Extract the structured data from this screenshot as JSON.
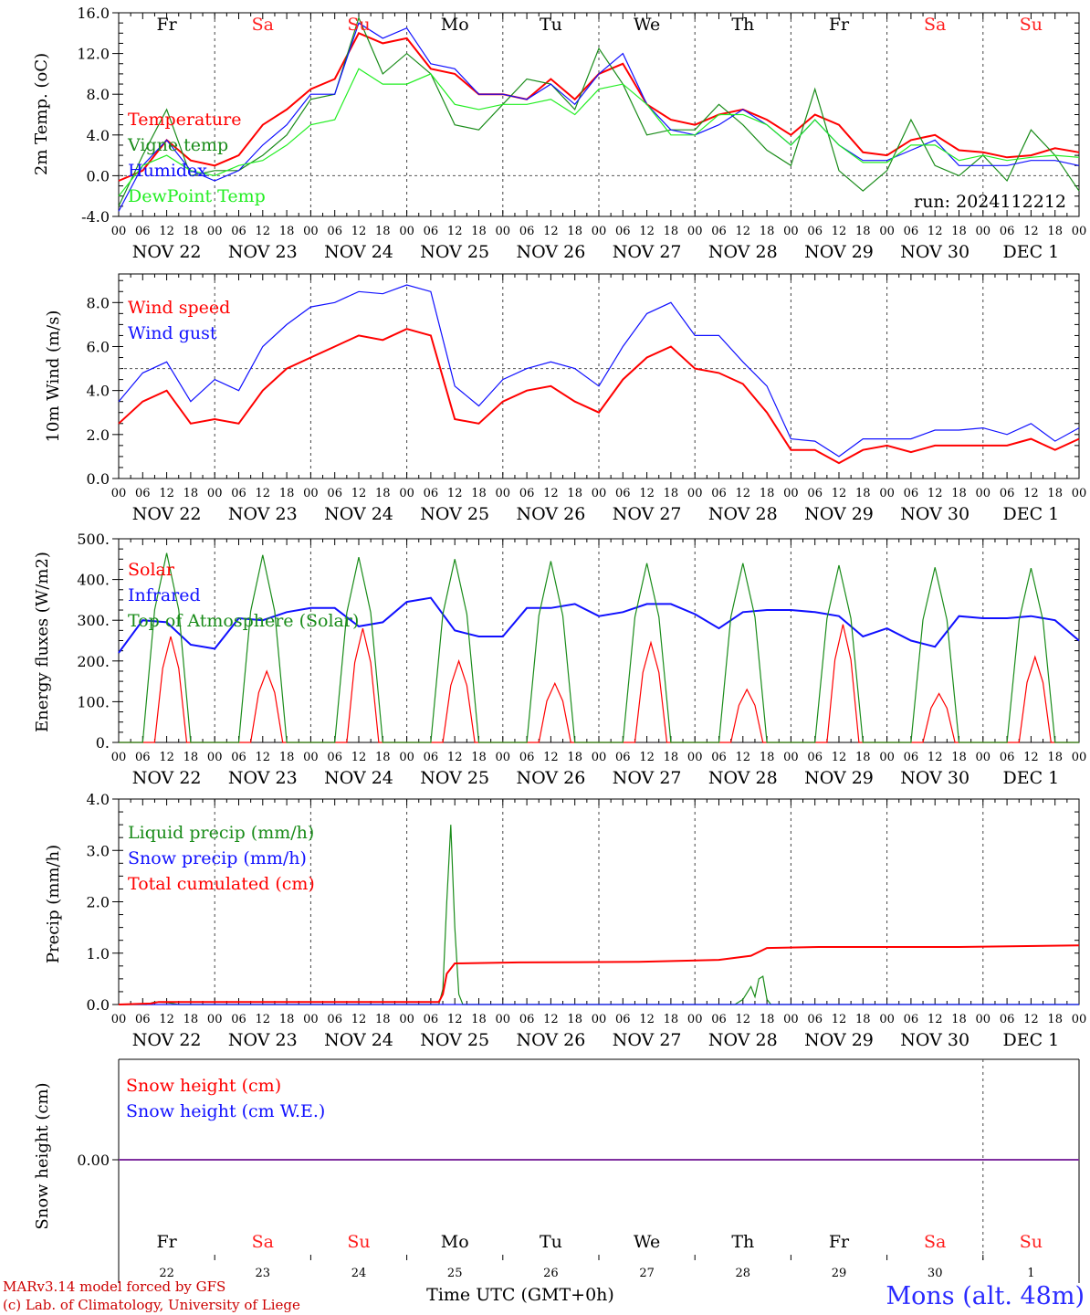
{
  "days": {
    "names": [
      "Fr",
      "Sa",
      "Su",
      "Mo",
      "Tu",
      "We",
      "Th",
      "Fr",
      "Sa",
      "Su"
    ],
    "weekend_color": "#ff2020",
    "weekday_color": "#000000",
    "dates": [
      "NOV 22",
      "NOV 23",
      "NOV 24",
      "NOV 25",
      "NOV 26",
      "NOV 27",
      "NOV 28",
      "NOV 29",
      "NOV 30",
      "DEC  1"
    ],
    "day_numbers": [
      "22",
      "23",
      "24",
      "25",
      "26",
      "27",
      "28",
      "29",
      "30",
      "1"
    ],
    "hour_labels": [
      "00",
      "06",
      "12",
      "18"
    ],
    "end_hour_label": "00"
  },
  "run_label": "run: 2024112212",
  "footer": {
    "credit1": "MARv3.14 model forced by GFS",
    "credit2": "(c) Lab. of Climatology, University of Liege",
    "time_axis": "Time UTC (GMT+0h)",
    "station": "Mons (alt. 48m)"
  },
  "colors": {
    "red": "#ff0000",
    "green": "#1a8c1a",
    "blue": "#1010ff",
    "lightgreen": "#22ee22",
    "purple": "#8030a0",
    "refline": "#555555"
  },
  "chart_data": [
    {
      "id": "temperature",
      "type": "line",
      "ylabel": "2m Temp. (oC)",
      "ylim": [
        -4,
        16
      ],
      "yticks": [
        "-4.0",
        "0.0",
        "4.0",
        "8.0",
        "12.0",
        "16.0"
      ],
      "ytick_values": [
        -4,
        0,
        4,
        8,
        12,
        16
      ],
      "refline": 0,
      "x_unit": "hours since NOV 22 00 UTC",
      "x": [
        0,
        6,
        12,
        18,
        24,
        30,
        36,
        42,
        48,
        54,
        60,
        66,
        72,
        78,
        84,
        90,
        96,
        102,
        108,
        114,
        120,
        126,
        132,
        138,
        144,
        150,
        156,
        162,
        168,
        174,
        180,
        186,
        192,
        198,
        204,
        210,
        216,
        222,
        228,
        234,
        240
      ],
      "series": [
        {
          "name": "Temperature",
          "color": "red",
          "values": [
            -0.5,
            0.5,
            3.5,
            1.5,
            1,
            2,
            5,
            6.5,
            8.5,
            9.5,
            14,
            13,
            13.5,
            10.5,
            10,
            8,
            8,
            7.5,
            9.5,
            7.5,
            10,
            11,
            7,
            5.5,
            5,
            6,
            6.5,
            5.5,
            4,
            6,
            5,
            2.3,
            2,
            3.5,
            4,
            2.5,
            2.3,
            1.8,
            2,
            2.7,
            2.3
          ]
        },
        {
          "name": "Vigne temp",
          "color": "green",
          "values": [
            -3,
            2,
            6.5,
            0,
            0.5,
            0.5,
            2,
            4,
            7.5,
            8,
            15.5,
            10,
            12,
            10,
            5,
            4.5,
            7,
            9.5,
            9,
            6.5,
            12.5,
            9,
            4,
            4.5,
            4.5,
            7,
            5,
            2.5,
            1,
            8.5,
            0.5,
            -1.5,
            0.5,
            5.5,
            1,
            0,
            2,
            -0.5,
            4.5,
            2,
            -1.5
          ]
        },
        {
          "name": "Humidex",
          "color": "blue",
          "values": [
            -3.5,
            1,
            3.5,
            0.5,
            -0.5,
            0.5,
            3,
            5,
            8,
            8,
            15,
            13.5,
            14.5,
            11,
            10.5,
            8,
            8,
            7.5,
            9,
            7,
            10,
            12,
            7,
            4.5,
            4,
            5,
            6.5,
            5,
            3,
            5.5,
            3,
            1.5,
            1.5,
            2.5,
            3.5,
            1,
            1,
            1,
            1.5,
            1.5,
            1
          ]
        },
        {
          "name": "DewPoint Temp",
          "color": "lightgreen",
          "values": [
            -2,
            1,
            2,
            0.5,
            0,
            1,
            1.5,
            3,
            5,
            5.5,
            10.5,
            9,
            9,
            10,
            7,
            6.5,
            7,
            7,
            7.5,
            6,
            8.5,
            9,
            7,
            4,
            4,
            6,
            6,
            5,
            3,
            5.5,
            3,
            1.3,
            1.3,
            3,
            3,
            1.5,
            2,
            1.5,
            1.8,
            2,
            1.8
          ]
        }
      ]
    },
    {
      "id": "wind",
      "type": "line",
      "ylabel": "10m Wind (m/s)",
      "ylim": [
        0,
        9.3
      ],
      "yticks": [
        "0.0",
        "2.0",
        "4.0",
        "6.0",
        "8.0"
      ],
      "ytick_values": [
        0,
        2,
        4,
        6,
        8
      ],
      "refline": 5,
      "x_unit": "hours since NOV 22 00 UTC",
      "x": [
        0,
        6,
        12,
        18,
        24,
        30,
        36,
        42,
        48,
        54,
        60,
        66,
        72,
        78,
        84,
        90,
        96,
        102,
        108,
        114,
        120,
        126,
        132,
        138,
        144,
        150,
        156,
        162,
        168,
        174,
        180,
        186,
        192,
        198,
        204,
        210,
        216,
        222,
        228,
        234,
        240
      ],
      "series": [
        {
          "name": "Wind speed",
          "color": "red",
          "values": [
            2.5,
            3.5,
            4,
            2.5,
            2.7,
            2.5,
            4,
            5,
            5.5,
            6,
            6.5,
            6.3,
            6.8,
            6.5,
            2.7,
            2.5,
            3.5,
            4,
            4.2,
            3.5,
            3,
            4.5,
            5.5,
            6,
            5,
            4.8,
            4.3,
            3,
            1.3,
            1.3,
            0.7,
            1.3,
            1.5,
            1.2,
            1.5,
            1.5,
            1.5,
            1.5,
            1.8,
            1.3,
            1.8
          ]
        },
        {
          "name": "Wind gust",
          "color": "blue",
          "values": [
            3.5,
            4.8,
            5.3,
            3.5,
            4.5,
            4,
            6,
            7,
            7.8,
            8,
            8.5,
            8.4,
            8.8,
            8.5,
            4.2,
            3.3,
            4.5,
            5,
            5.3,
            5,
            4.2,
            6,
            7.5,
            8,
            6.5,
            6.5,
            5.3,
            4.2,
            1.8,
            1.7,
            1,
            1.8,
            1.8,
            1.8,
            2.2,
            2.2,
            2.3,
            2,
            2.5,
            1.7,
            2.3
          ]
        }
      ]
    },
    {
      "id": "energy",
      "type": "line",
      "ylabel": "Energy fluxes (W/m2)",
      "ylim": [
        0,
        500
      ],
      "yticks": [
        "0.",
        "100.",
        "200.",
        "300.",
        "400.",
        "500."
      ],
      "ytick_values": [
        0,
        100,
        200,
        300,
        400,
        500
      ],
      "x_unit": "hours since NOV 22 00 UTC",
      "series": [
        {
          "name": "Solar",
          "color": "red",
          "peaks": [
            {
              "x": 13,
              "y": 260
            },
            {
              "x": 37,
              "y": 175
            },
            {
              "x": 61,
              "y": 280
            },
            {
              "x": 85,
              "y": 200
            },
            {
              "x": 109,
              "y": 145
            },
            {
              "x": 133,
              "y": 245
            },
            {
              "x": 157,
              "y": 130
            },
            {
              "x": 181,
              "y": 290
            },
            {
              "x": 205,
              "y": 120
            },
            {
              "x": 229,
              "y": 210
            }
          ]
        },
        {
          "name": "Infrared",
          "color": "blue",
          "values": [
            220,
            300,
            295,
            240,
            230,
            305,
            300,
            320,
            330,
            330,
            285,
            295,
            345,
            355,
            275,
            260,
            260,
            330,
            330,
            340,
            310,
            320,
            340,
            340,
            315,
            280,
            320,
            325,
            325,
            320,
            310,
            260,
            280,
            250,
            235,
            310,
            305,
            305,
            310,
            300,
            250
          ]
        },
        {
          "name": "Top of Atmosphere (Solar)",
          "color": "green",
          "peaks": [
            {
              "x": 12,
              "y": 465
            },
            {
              "x": 36,
              "y": 460
            },
            {
              "x": 60,
              "y": 455
            },
            {
              "x": 84,
              "y": 450
            },
            {
              "x": 108,
              "y": 445
            },
            {
              "x": 132,
              "y": 440
            },
            {
              "x": 156,
              "y": 440
            },
            {
              "x": 180,
              "y": 435
            },
            {
              "x": 204,
              "y": 430
            },
            {
              "x": 228,
              "y": 428
            }
          ]
        }
      ]
    },
    {
      "id": "precip",
      "type": "line",
      "ylabel": "Precip (mm/h)",
      "ylim": [
        0,
        4
      ],
      "yticks": [
        "0.0",
        "1.0",
        "2.0",
        "3.0",
        "4.0"
      ],
      "ytick_values": [
        0,
        1,
        2,
        3,
        4
      ],
      "x_unit": "hours since NOV 22 00 UTC",
      "series": [
        {
          "name": "Liquid precip (mm/h)",
          "color": "green",
          "points": [
            [
              0,
              0
            ],
            [
              7,
              0
            ],
            [
              9,
              0.05
            ],
            [
              12,
              0.04
            ],
            [
              15,
              0
            ],
            [
              80,
              0
            ],
            [
              81,
              0.3
            ],
            [
              82,
              2
            ],
            [
              83,
              3.5
            ],
            [
              84,
              1.5
            ],
            [
              85,
              0.2
            ],
            [
              86,
              0
            ],
            [
              154,
              0
            ],
            [
              156,
              0.1
            ],
            [
              158,
              0.35
            ],
            [
              159,
              0.15
            ],
            [
              160,
              0.5
            ],
            [
              161,
              0.55
            ],
            [
              162,
              0.1
            ],
            [
              163,
              0
            ],
            [
              240,
              0
            ]
          ]
        },
        {
          "name": "Snow precip (mm/h)",
          "color": "blue",
          "points": [
            [
              0,
              0
            ],
            [
              240,
              0
            ]
          ]
        },
        {
          "name": "Total cumulated (cm)",
          "color": "red",
          "points": [
            [
              0,
              0
            ],
            [
              8,
              0.02
            ],
            [
              10,
              0.05
            ],
            [
              80,
              0.05
            ],
            [
              81,
              0.2
            ],
            [
              82,
              0.6
            ],
            [
              84,
              0.8
            ],
            [
              100,
              0.82
            ],
            [
              130,
              0.83
            ],
            [
              150,
              0.87
            ],
            [
              158,
              0.95
            ],
            [
              162,
              1.1
            ],
            [
              175,
              1.12
            ],
            [
              210,
              1.12
            ],
            [
              240,
              1.15
            ]
          ]
        }
      ]
    },
    {
      "id": "snow",
      "type": "line",
      "ylabel": "Snow height (cm)",
      "yticks": [
        "0.00"
      ],
      "ytick_values": [
        0
      ],
      "series": [
        {
          "name": "Snow height (cm)",
          "color": "red"
        },
        {
          "name": "Snow height (cm W.E.)",
          "color": "blue"
        }
      ]
    }
  ]
}
